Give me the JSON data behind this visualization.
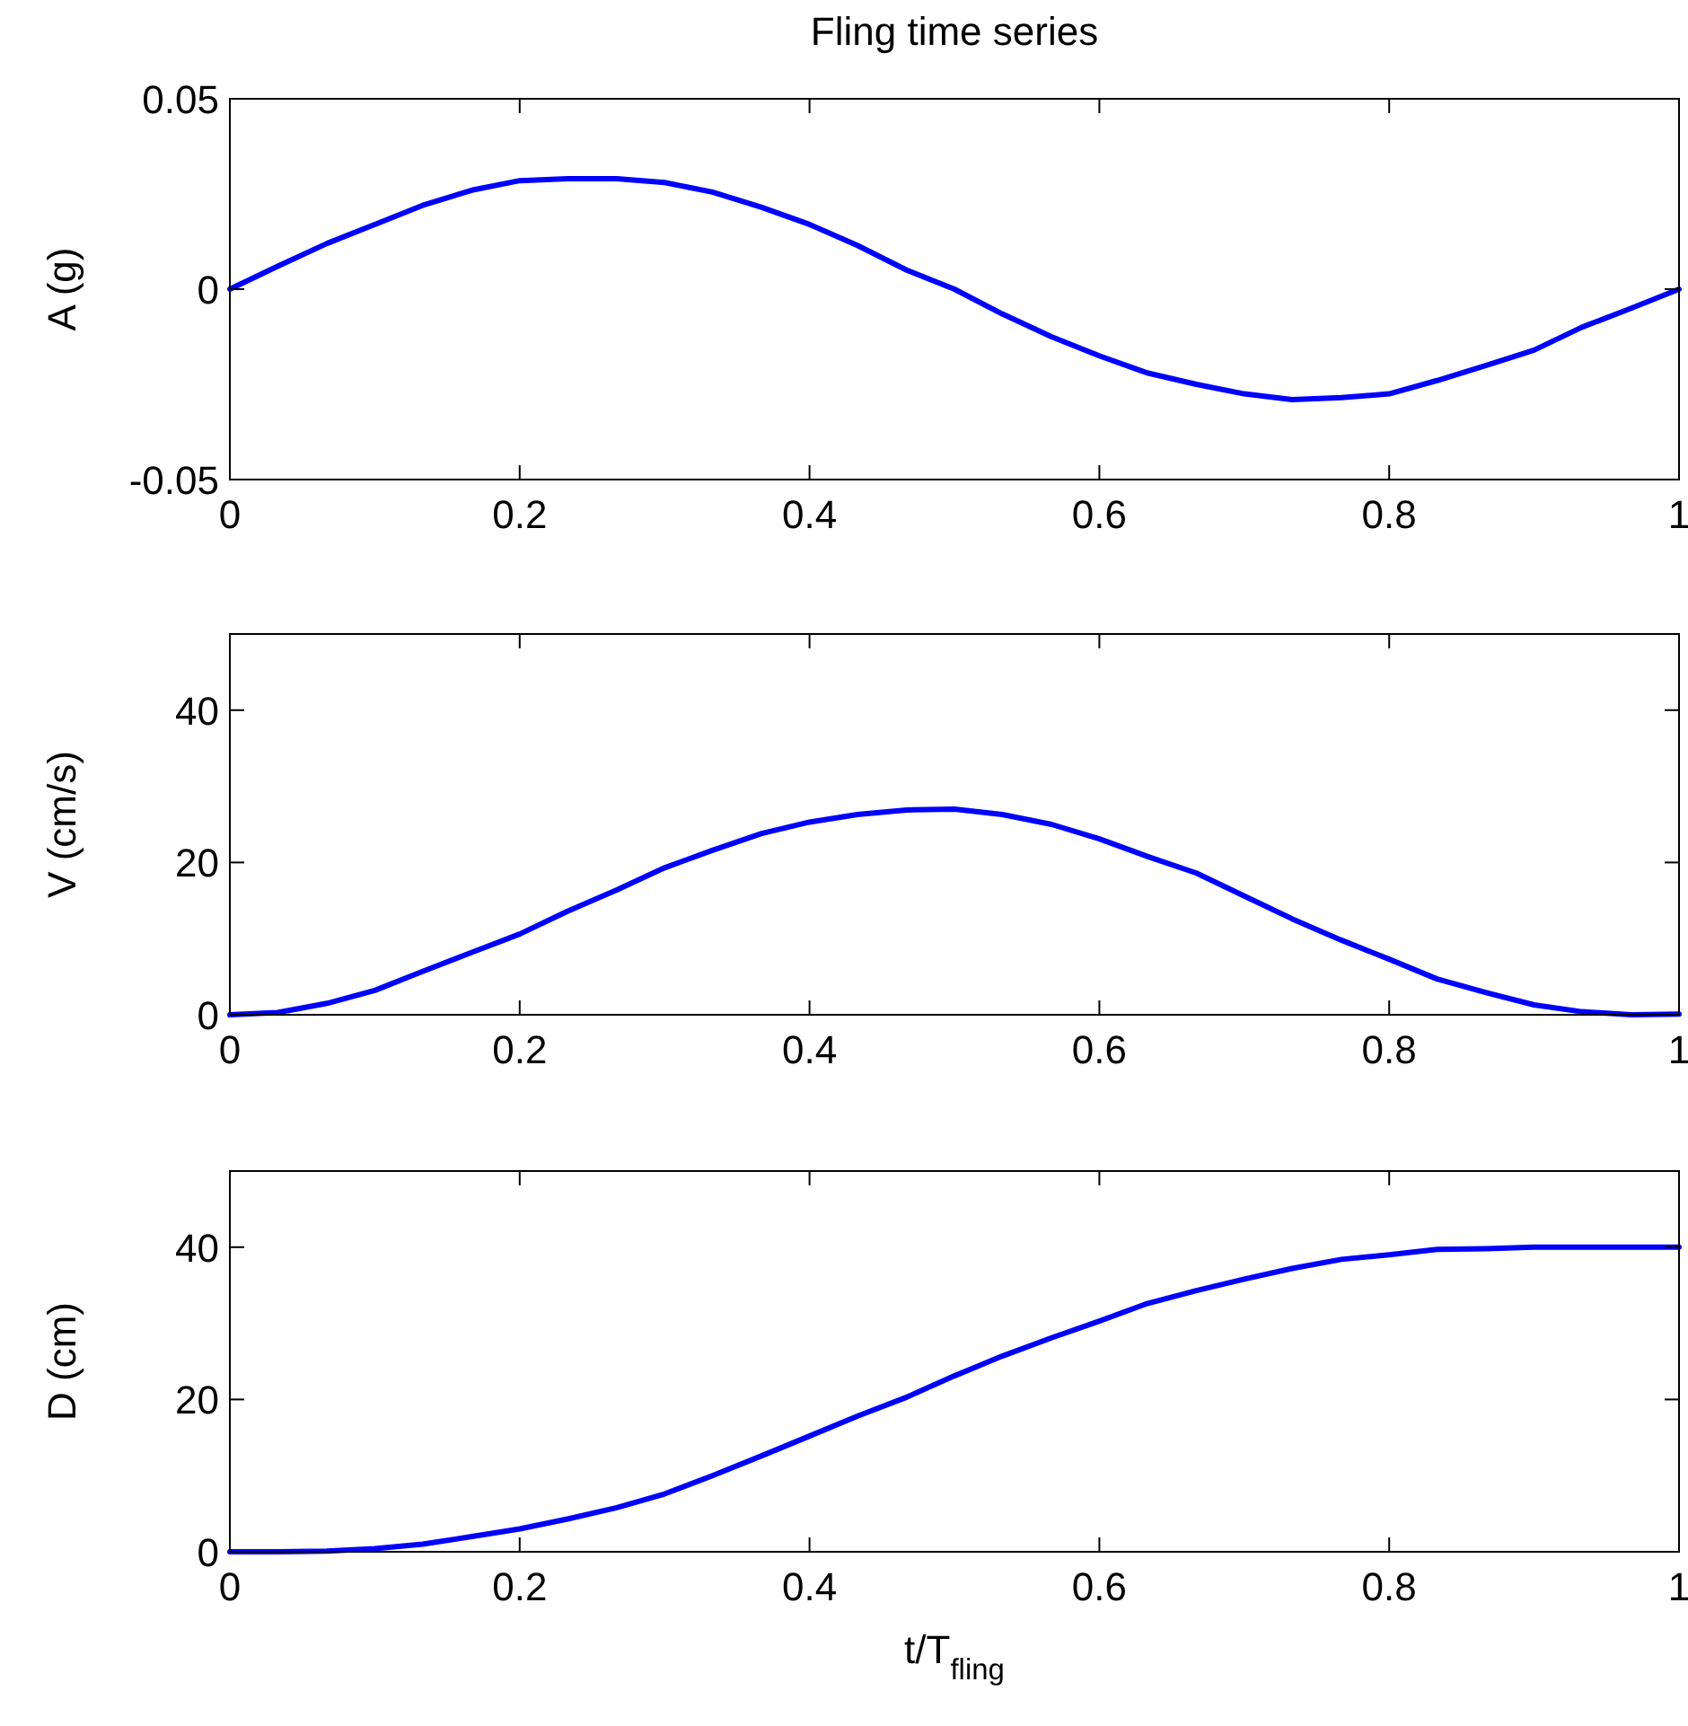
{
  "chart_data": [
    {
      "type": "line",
      "title": "Fling time series",
      "ylabel": "A (g)",
      "xlim": [
        0,
        1
      ],
      "xticks": [
        0,
        0.2,
        0.4,
        0.6,
        0.8,
        1
      ],
      "ylim": [
        -0.05,
        0.05
      ],
      "yticks": [
        -0.05,
        0,
        0.05
      ],
      "grid": false,
      "marker": "none",
      "line_style": "solid",
      "x": [
        0,
        0.033,
        0.067,
        0.1,
        0.133,
        0.167,
        0.2,
        0.233,
        0.267,
        0.3,
        0.333,
        0.367,
        0.4,
        0.433,
        0.467,
        0.5,
        0.533,
        0.567,
        0.6,
        0.633,
        0.667,
        0.7,
        0.733,
        0.767,
        0.8,
        0.833,
        0.867,
        0.9,
        0.933,
        0.967,
        1
      ],
      "series": [
        {
          "color": "#0000ff",
          "values": [
            0,
            0.006,
            0.012,
            0.017,
            0.022,
            0.026,
            0.0285,
            0.029,
            0.029,
            0.028,
            0.0255,
            0.0215,
            0.017,
            0.0115,
            0.005,
            0,
            -0.0065,
            -0.0125,
            -0.0175,
            -0.022,
            -0.025,
            -0.0275,
            -0.029,
            -0.0285,
            -0.0275,
            -0.024,
            -0.02,
            -0.016,
            -0.01,
            -0.005,
            0
          ]
        }
      ]
    },
    {
      "type": "line",
      "ylabel": "V (cm/s)",
      "xlim": [
        0,
        1
      ],
      "xticks": [
        0,
        0.2,
        0.4,
        0.6,
        0.8,
        1
      ],
      "ylim": [
        0,
        50
      ],
      "yticks": [
        0,
        20,
        40
      ],
      "grid": false,
      "marker": "none",
      "line_style": "solid",
      "x": [
        0,
        0.033,
        0.067,
        0.1,
        0.133,
        0.167,
        0.2,
        0.233,
        0.267,
        0.3,
        0.333,
        0.367,
        0.4,
        0.433,
        0.467,
        0.5,
        0.533,
        0.567,
        0.6,
        0.633,
        0.667,
        0.7,
        0.733,
        0.767,
        0.8,
        0.833,
        0.867,
        0.9,
        0.933,
        0.967,
        1
      ],
      "series": [
        {
          "color": "#0000ff",
          "values": [
            0,
            0.3,
            1.5,
            3.2,
            5.7,
            8.2,
            10.6,
            13.6,
            16.4,
            19.3,
            21.6,
            23.8,
            25.3,
            26.3,
            26.9,
            27,
            26.3,
            25,
            23.1,
            20.8,
            18.6,
            15.6,
            12.6,
            9.8,
            7.3,
            4.7,
            2.9,
            1.3,
            0.4,
            0,
            0.1
          ]
        }
      ]
    },
    {
      "type": "line",
      "xlabel": "t/T$_{fling}$",
      "ylabel": "D (cm)",
      "xlim": [
        0,
        1
      ],
      "xticks": [
        0,
        0.2,
        0.4,
        0.6,
        0.8,
        1
      ],
      "ylim": [
        0,
        50
      ],
      "yticks": [
        0,
        20,
        40
      ],
      "grid": false,
      "marker": "none",
      "line_style": "solid",
      "x": [
        0,
        0.033,
        0.067,
        0.1,
        0.133,
        0.167,
        0.2,
        0.233,
        0.267,
        0.3,
        0.333,
        0.367,
        0.4,
        0.433,
        0.467,
        0.5,
        0.533,
        0.567,
        0.6,
        0.633,
        0.667,
        0.7,
        0.733,
        0.767,
        0.8,
        0.833,
        0.867,
        0.9,
        0.933,
        0.967,
        1
      ],
      "series": [
        {
          "color": "#0000ff",
          "values": [
            0,
            0,
            0.1,
            0.4,
            1,
            2,
            3,
            4.3,
            5.8,
            7.6,
            10,
            12.6,
            15.2,
            17.8,
            20.3,
            23.1,
            25.7,
            28.1,
            30.3,
            32.6,
            34.3,
            35.8,
            37.2,
            38.4,
            39,
            39.7,
            39.8,
            40,
            40,
            40,
            40
          ]
        }
      ]
    }
  ]
}
